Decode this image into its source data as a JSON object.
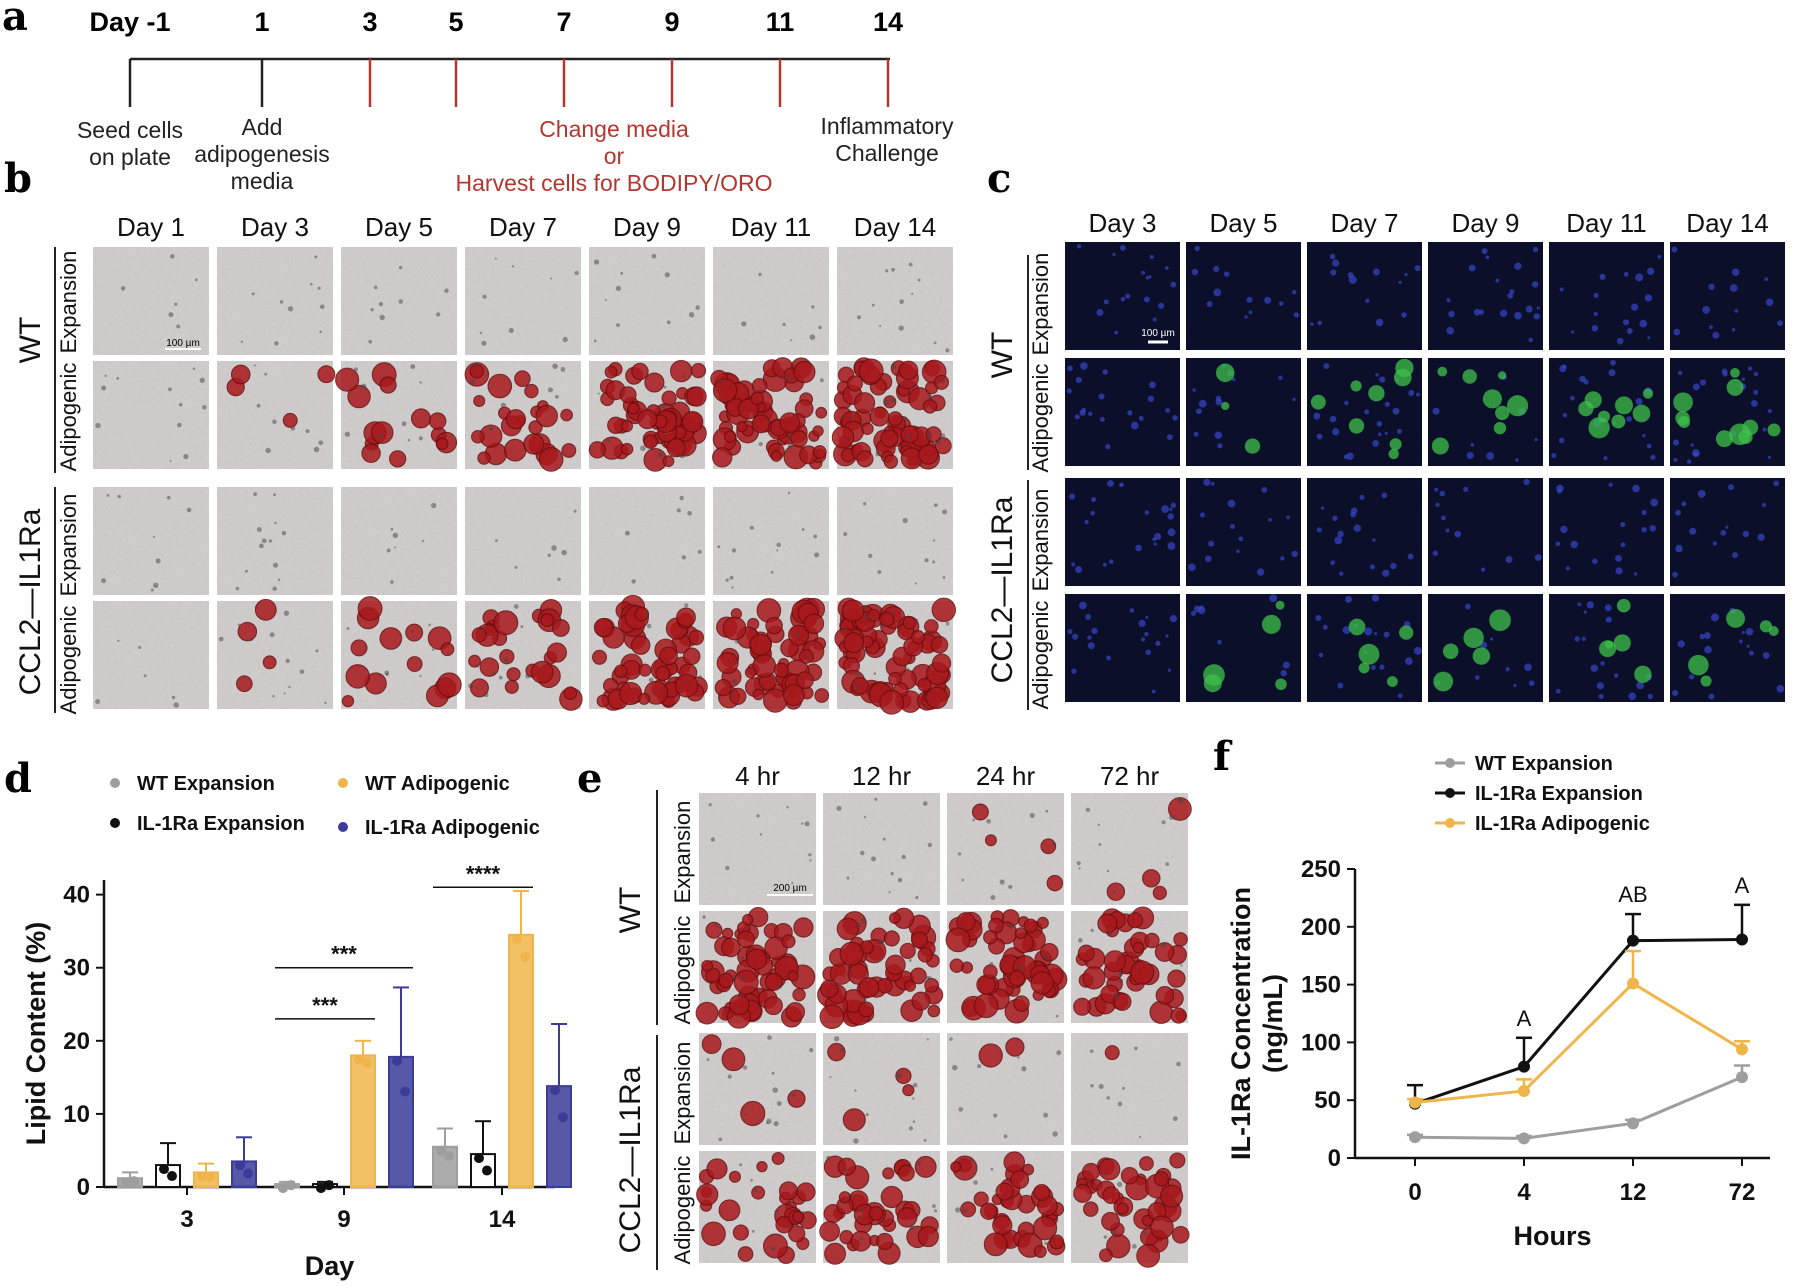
{
  "panel_labels": {
    "a": "a",
    "b": "b",
    "c": "c",
    "d": "d",
    "e": "e",
    "f": "f"
  },
  "timeline": {
    "days": [
      {
        "label": "Day -1",
        "color": "#222222"
      },
      {
        "label": "1",
        "color": "#222222"
      },
      {
        "label": "3",
        "color": "#b5362f"
      },
      {
        "label": "5",
        "color": "#b5362f"
      },
      {
        "label": "7",
        "color": "#b5362f"
      },
      {
        "label": "9",
        "color": "#b5362f"
      },
      {
        "label": "11",
        "color": "#b5362f"
      },
      {
        "label": "14",
        "color": "#b5362f"
      }
    ],
    "seed_line1": "Seed cells",
    "seed_line2": "on plate",
    "add_line1": "Add",
    "add_line2": "adipogenesis",
    "add_line3": "media",
    "change_line1": "Change media",
    "change_line2": "or",
    "change_line3": "Harvest cells for BODIPY/ORO",
    "infl_line1": "Inflammatory",
    "infl_line2": "Challenge"
  },
  "panel_b": {
    "columns": [
      "Day 1",
      "Day 3",
      "Day 5",
      "Day 7",
      "Day 9",
      "Day 11",
      "Day 14"
    ],
    "groups": [
      "WT",
      "CCL2—IL1Ra"
    ],
    "rows": [
      "Expansion",
      "Adipogenic"
    ],
    "scale_bar": "100 µm",
    "adipogenic_red_level": [
      0.0,
      0.05,
      0.2,
      0.35,
      0.75,
      0.85,
      0.95
    ]
  },
  "panel_c": {
    "columns": [
      "Day 3",
      "Day 5",
      "Day 7",
      "Day 9",
      "Day 11",
      "Day 14"
    ],
    "groups": [
      "WT",
      "CCL2—IL1Ra"
    ],
    "rows": [
      "Expansion",
      "Adipogenic"
    ],
    "scale_bar": "100 µm"
  },
  "panel_e": {
    "columns": [
      "4 hr",
      "12 hr",
      "24 hr",
      "72 hr"
    ],
    "groups": [
      "WT",
      "CCL2—IL1Ra"
    ],
    "rows": [
      "Expansion",
      "Adipogenic"
    ],
    "scale_bar": "200 µm"
  },
  "chart_data": [
    {
      "type": "bar",
      "panel": "d",
      "categories": [
        "3",
        "9",
        "14"
      ],
      "xlabel": "Day",
      "ylabel": "Lipid Content (%)",
      "ylim": [
        0,
        42
      ],
      "yticks": [
        0,
        10,
        20,
        30,
        40
      ],
      "legend_placement": "top",
      "series": [
        {
          "name": "WT Expansion",
          "color": "#9e9e9e",
          "values": [
            1.2,
            0.4,
            5.5
          ],
          "errors": [
            0.8,
            0.3,
            2.5
          ]
        },
        {
          "name": "IL-1Ra Expansion",
          "color": "#111111",
          "values": [
            3.0,
            0.4,
            4.5
          ],
          "errors": [
            3.0,
            0.3,
            4.5
          ]
        },
        {
          "name": "WT Adipogenic",
          "color": "#f0b54a",
          "values": [
            2.0,
            18.0,
            34.5
          ],
          "errors": [
            1.2,
            2.0,
            6.0
          ]
        },
        {
          "name": "IL-1Ra Adipogenic",
          "color": "#3b3b9a",
          "values": [
            3.5,
            17.8,
            13.8
          ],
          "errors": [
            3.3,
            9.5,
            8.5
          ]
        }
      ],
      "annotations": [
        {
          "text": "***",
          "category": "9",
          "from": "WT Expansion",
          "to": "WT Adipogenic",
          "y": 23
        },
        {
          "text": "***",
          "category": "9",
          "from": "WT Expansion",
          "to": "IL-1Ra Adipogenic",
          "y": 30
        },
        {
          "text": "****",
          "category": "14",
          "from": "WT Expansion",
          "to": "WT Adipogenic",
          "y": 41
        }
      ]
    },
    {
      "type": "line",
      "panel": "f",
      "x": [
        "0",
        "4",
        "12",
        "72"
      ],
      "xlabel": "Hours",
      "ylabel": "IL-1Ra Concentration (ng/mL)",
      "ylim": [
        0,
        250
      ],
      "yticks": [
        0,
        50,
        100,
        150,
        200,
        250
      ],
      "legend_placement": "top",
      "series": [
        {
          "name": "WT Expansion",
          "color": "#9e9e9e",
          "values": [
            18,
            17,
            30,
            70
          ],
          "errors": [
            2,
            2,
            3,
            10
          ]
        },
        {
          "name": "IL-1Ra Expansion",
          "color": "#111111",
          "values": [
            47,
            79,
            188,
            189
          ],
          "errors": [
            16,
            25,
            23,
            30
          ]
        },
        {
          "name": "IL-1Ra Adipogenic",
          "color": "#f0b54a",
          "values": [
            48,
            58,
            151,
            94
          ],
          "errors": [
            3,
            10,
            28,
            7
          ]
        }
      ],
      "annotations": [
        {
          "text": "A",
          "x": "4"
        },
        {
          "text": "AB",
          "x": "12"
        },
        {
          "text": "A",
          "x": "72"
        }
      ]
    }
  ]
}
